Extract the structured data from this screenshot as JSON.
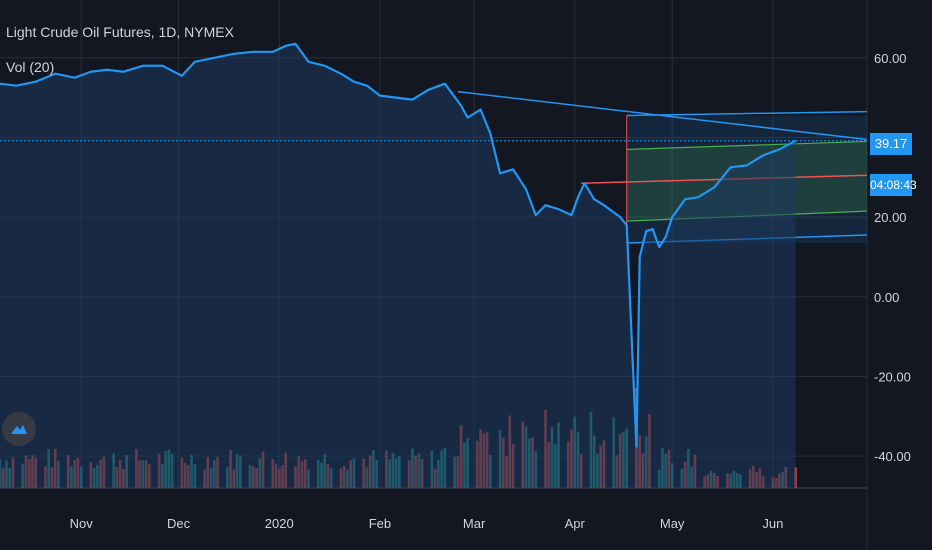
{
  "header": {
    "title": "Light Crude Oil Futures, 1D, NYMEX",
    "indicator": "Vol (20)"
  },
  "price_tag": {
    "value": "39.17",
    "countdown": "04:08:43",
    "color": "#2196f3"
  },
  "colors": {
    "background": "#131722",
    "price_line": "#2196f3",
    "area_fill": "#1e3a5f",
    "volume_up": "#26a69a",
    "volume_down": "#ef5350",
    "channel": "#2196f3",
    "channel_inner": "#4caf50",
    "channel_mid": "#ef5350"
  },
  "chart_data": {
    "type": "line",
    "title": "Light Crude Oil Futures, 1D, NYMEX",
    "y_axis": {
      "ticks": [
        "60.00",
        "40.00",
        "20.00",
        "0.00",
        "-20.00",
        "-40.00"
      ],
      "tick_values": [
        60,
        40,
        20,
        0,
        -20,
        -40
      ],
      "range": [
        -48,
        72
      ]
    },
    "x_axis": {
      "ticks": [
        "Nov",
        "Dec",
        "2020",
        "Feb",
        "Mar",
        "Apr",
        "May",
        "Jun"
      ],
      "tick_dates": [
        "2019-11-01",
        "2019-12-01",
        "2020-01-01",
        "2020-02-01",
        "2020-03-01",
        "2020-04-01",
        "2020-05-01",
        "2020-06-01"
      ],
      "range": [
        "2019-10-07",
        "2020-06-30"
      ]
    },
    "series": [
      {
        "values": [
          [
            "2019-10-07",
            53.5
          ],
          [
            "2019-10-12",
            53.0
          ],
          [
            "2019-10-18",
            54.0
          ],
          [
            "2019-10-24",
            56.0
          ],
          [
            "2019-10-30",
            55.0
          ],
          [
            "2019-11-04",
            56.5
          ],
          [
            "2019-11-09",
            57.0
          ],
          [
            "2019-11-14",
            56.5
          ],
          [
            "2019-11-20",
            58.0
          ],
          [
            "2019-11-26",
            58.0
          ],
          [
            "2019-12-02",
            55.5
          ],
          [
            "2019-12-06",
            59.0
          ],
          [
            "2019-12-12",
            60.0
          ],
          [
            "2019-12-18",
            61.0
          ],
          [
            "2019-12-24",
            61.5
          ],
          [
            "2019-12-30",
            61.5
          ],
          [
            "2020-01-03",
            63.0
          ],
          [
            "2020-01-06",
            63.5
          ],
          [
            "2020-01-10",
            59.0
          ],
          [
            "2020-01-15",
            58.0
          ],
          [
            "2020-01-20",
            56.0
          ],
          [
            "2020-01-24",
            54.0
          ],
          [
            "2020-01-28",
            53.0
          ],
          [
            "2020-02-01",
            50.5
          ],
          [
            "2020-02-06",
            50.0
          ],
          [
            "2020-02-11",
            49.5
          ],
          [
            "2020-02-16",
            52.0
          ],
          [
            "2020-02-21",
            53.5
          ],
          [
            "2020-02-26",
            48.0
          ],
          [
            "2020-02-28",
            45.0
          ],
          [
            "2020-03-03",
            47.0
          ],
          [
            "2020-03-06",
            41.0
          ],
          [
            "2020-03-09",
            31.0
          ],
          [
            "2020-03-13",
            32.0
          ],
          [
            "2020-03-17",
            27.0
          ],
          [
            "2020-03-20",
            20.5
          ],
          [
            "2020-03-23",
            23.0
          ],
          [
            "2020-03-27",
            22.0
          ],
          [
            "2020-03-31",
            20.5
          ],
          [
            "2020-04-02",
            25.0
          ],
          [
            "2020-04-04",
            28.5
          ],
          [
            "2020-04-07",
            24.5
          ],
          [
            "2020-04-10",
            23.0
          ],
          [
            "2020-04-15",
            20.0
          ],
          [
            "2020-04-17",
            18.0
          ],
          [
            "2020-04-20",
            -37.6
          ],
          [
            "2020-04-21",
            10.0
          ],
          [
            "2020-04-23",
            16.5
          ],
          [
            "2020-04-25",
            17.0
          ],
          [
            "2020-04-27",
            12.5
          ],
          [
            "2020-04-29",
            15.0
          ],
          [
            "2020-05-01",
            20.0
          ],
          [
            "2020-05-05",
            24.5
          ],
          [
            "2020-05-09",
            25.0
          ],
          [
            "2020-05-14",
            27.5
          ],
          [
            "2020-05-19",
            32.5
          ],
          [
            "2020-05-24",
            33.0
          ],
          [
            "2020-05-29",
            35.5
          ],
          [
            "2020-06-03",
            37.0
          ],
          [
            "2020-06-08",
            39.17
          ]
        ]
      }
    ],
    "last_price": 39.17
  }
}
